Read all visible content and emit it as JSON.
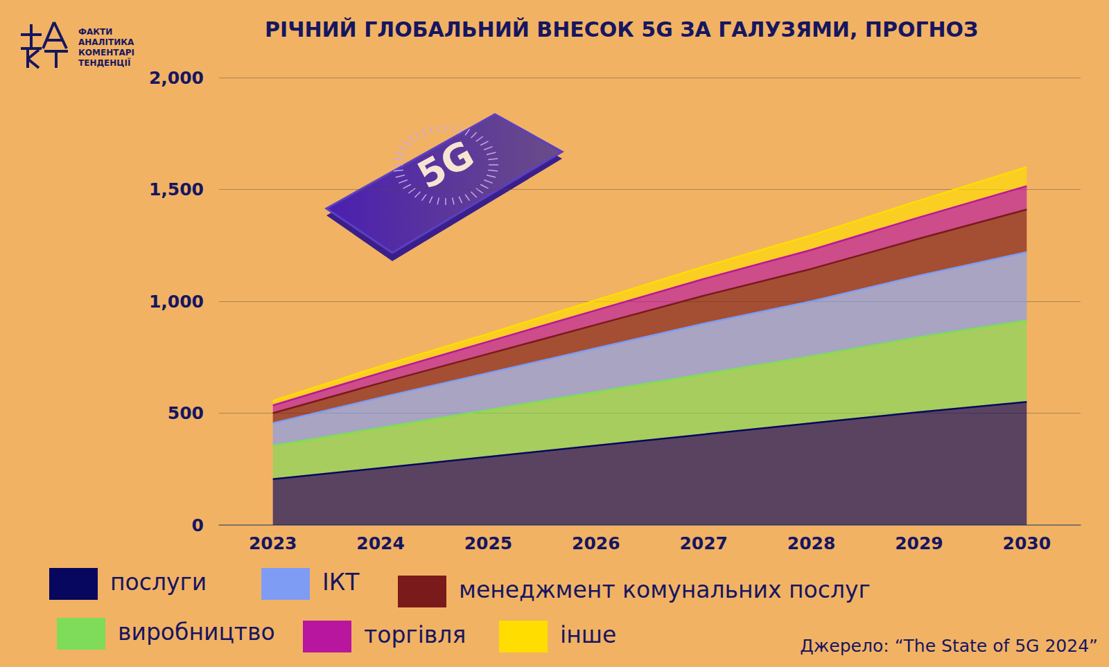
{
  "chart_data": {
    "type": "area",
    "title": "РІЧНИЙ ГЛОБАЛЬНИЙ ВНЕСОК 5G ЗА ГАЛУЗЯМИ, ПРОГНОЗ",
    "logo_text": [
      "ФАКТИ",
      "АНАЛІТИКА",
      "КОМЕНТАРІ",
      "ТЕНДЕНЦІЇ"
    ],
    "annotation": "5G",
    "source": "Джерело: “The State of 5G 2024”",
    "categories": [
      "2023",
      "2024",
      "2025",
      "2026",
      "2027",
      "2028",
      "2029",
      "2030"
    ],
    "stacked": true,
    "ylim": [
      0,
      2000
    ],
    "yticks": [
      0,
      500,
      1000,
      1500,
      2000
    ],
    "grid": true,
    "legend": "bottom",
    "series": [
      {
        "name": "послуги",
        "color": "#070760",
        "values": [
          205,
          255,
          305,
          355,
          405,
          455,
          505,
          550
        ]
      },
      {
        "name": "виробництво",
        "color": "#7edc5a",
        "values": [
          150,
          180,
          210,
          240,
          270,
          300,
          335,
          365
        ]
      },
      {
        "name": "ІКТ",
        "color": "#7f9cf5",
        "values": [
          100,
          135,
          165,
          195,
          225,
          245,
          275,
          305
        ]
      },
      {
        "name": "менеджмент комунальних послуг",
        "color": "#7a1a1a",
        "values": [
          45,
          65,
          85,
          105,
          125,
          145,
          165,
          190
        ]
      },
      {
        "name": "торгівля",
        "color": "#b8169e",
        "values": [
          35,
          45,
          55,
          65,
          75,
          85,
          95,
          105
        ]
      },
      {
        "name": "інше",
        "color": "#ffdd00",
        "values": [
          20,
          30,
          35,
          45,
          55,
          65,
          75,
          85
        ]
      }
    ]
  }
}
